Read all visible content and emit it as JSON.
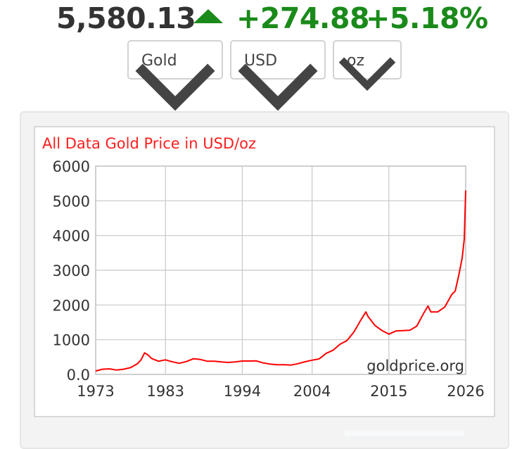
{
  "header": {
    "price": "5,580.13",
    "direction_icon": "triangle-up-icon",
    "change": "+274.88",
    "change_pct": "+5.18%",
    "up_color": "#1a8a1a"
  },
  "selectors": {
    "metal": "Gold",
    "currency": "USD",
    "unit": "oz"
  },
  "chart_data": {
    "type": "line",
    "title": "All Data Gold Price in USD/oz",
    "watermark": "goldprice.org",
    "xlabel": "",
    "ylabel": "",
    "xlim": [
      1973,
      2026
    ],
    "ylim": [
      0,
      6000
    ],
    "x_ticks": [
      1973,
      1983,
      1994,
      2004,
      2015,
      2026
    ],
    "x_tick_labels": [
      "1973",
      "1983",
      "1994",
      "2004",
      "2015",
      "2026"
    ],
    "y_ticks": [
      0,
      1000,
      2000,
      3000,
      4000,
      5000,
      6000
    ],
    "y_tick_labels": [
      "0.0",
      "1000",
      "2000",
      "3000",
      "4000",
      "5000",
      "6000"
    ],
    "grid": true,
    "series_color": "#ff0000",
    "series": [
      {
        "x": [
          1973,
          1974,
          1975,
          1976,
          1977,
          1978,
          1979,
          1979.5,
          1980,
          1980.5,
          1981,
          1982,
          1983,
          1984,
          1985,
          1986,
          1987,
          1988,
          1989,
          1990,
          1991,
          1992,
          1993,
          1994,
          1995,
          1996,
          1997,
          1998,
          1999,
          2000,
          2001,
          2002,
          2003,
          2004,
          2005,
          2006,
          2007,
          2008,
          2009,
          2010,
          2011,
          2011.7,
          2012,
          2013,
          2014,
          2015,
          2016,
          2017,
          2018,
          2019,
          2020,
          2020.6,
          2021,
          2022,
          2023,
          2024,
          2024.5,
          2025,
          2025.5,
          2025.8,
          2026
        ],
        "values": [
          100,
          150,
          160,
          125,
          150,
          195,
          310,
          420,
          620,
          560,
          460,
          380,
          420,
          360,
          320,
          370,
          450,
          430,
          380,
          380,
          360,
          345,
          360,
          385,
          385,
          390,
          330,
          295,
          280,
          280,
          270,
          310,
          365,
          410,
          445,
          605,
          695,
          870,
          975,
          1225,
          1570,
          1800,
          1670,
          1410,
          1265,
          1160,
          1250,
          1260,
          1270,
          1390,
          1770,
          1970,
          1800,
          1800,
          1940,
          2300,
          2400,
          2850,
          3350,
          3900,
          5300
        ]
      }
    ]
  }
}
